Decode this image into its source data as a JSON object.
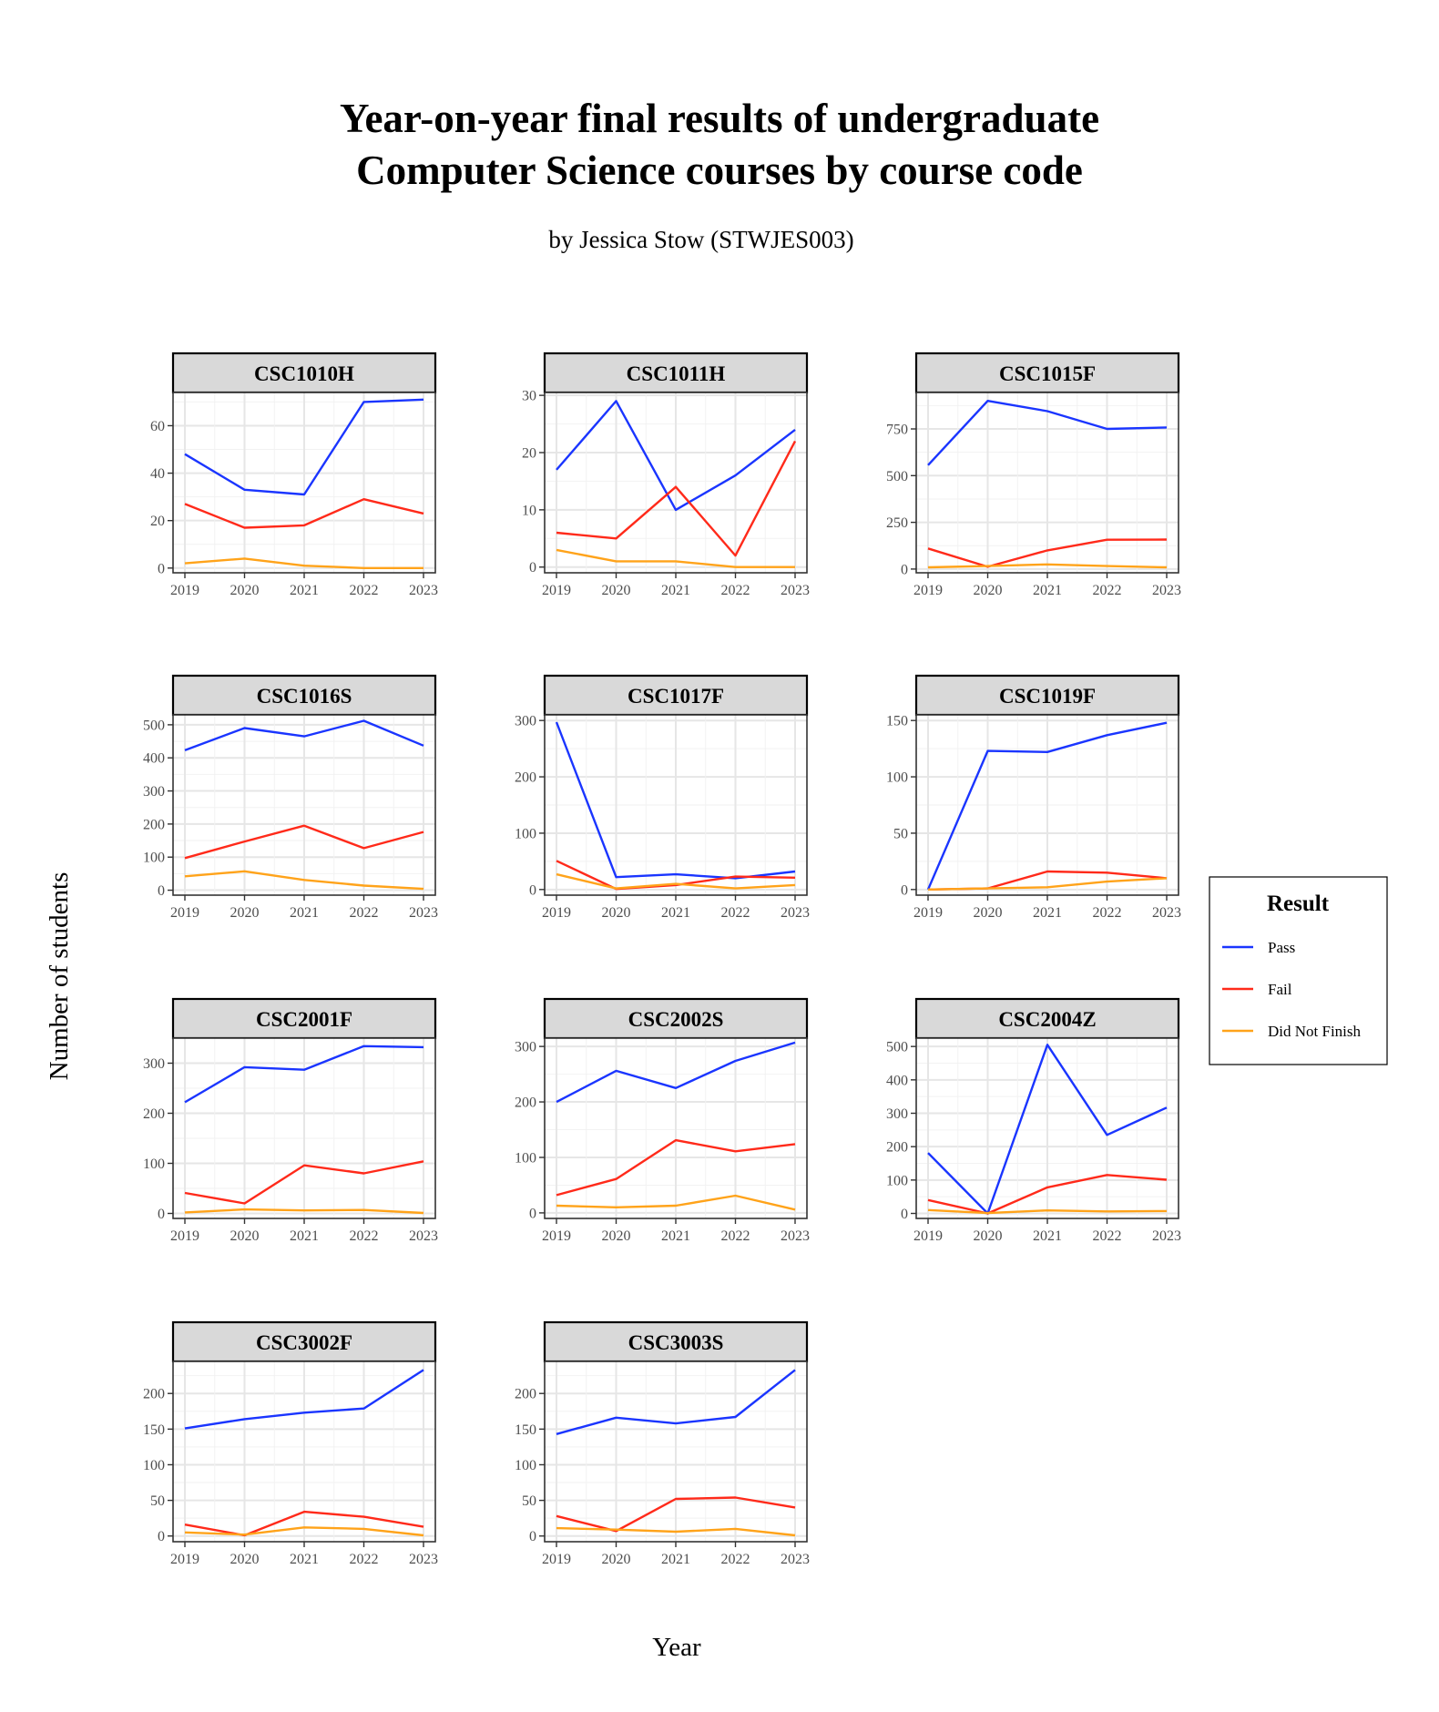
{
  "chart_data": {
    "type": "line",
    "title_lines": [
      "Year-on-year final results of undergraduate",
      "Computer Science courses by course code"
    ],
    "subtitle": "by Jessica Stow (STWJES003)",
    "xlabel": "Year",
    "ylabel": "Number of students",
    "x": [
      "2019",
      "2020",
      "2021",
      "2022",
      "2023"
    ],
    "legend": {
      "title": "Result",
      "position": "right",
      "entries": [
        {
          "name": "Pass",
          "color": "#1a35ff"
        },
        {
          "name": "Fail",
          "color": "#ff2a1a"
        },
        {
          "name": "Did Not Finish",
          "color": "#ffa31a"
        }
      ]
    },
    "grid": true,
    "panels": [
      {
        "title": "CSC1010H",
        "ylim": [
          -2,
          74
        ],
        "yticks": [
          0,
          20,
          40,
          60
        ],
        "series": [
          {
            "name": "Pass",
            "values": [
              48,
              33,
              31,
              70,
              71
            ]
          },
          {
            "name": "Fail",
            "values": [
              27,
              17,
              18,
              29,
              23
            ]
          },
          {
            "name": "Did Not Finish",
            "values": [
              2,
              4,
              1,
              0,
              0
            ]
          }
        ]
      },
      {
        "title": "CSC1011H",
        "ylim": [
          -1,
          30.5
        ],
        "yticks": [
          0,
          10,
          20,
          30
        ],
        "series": [
          {
            "name": "Pass",
            "values": [
              17,
              29,
              10,
              16,
              24
            ]
          },
          {
            "name": "Fail",
            "values": [
              6,
              5,
              14,
              2,
              22
            ]
          },
          {
            "name": "Did Not Finish",
            "values": [
              3,
              1,
              1,
              0,
              0
            ]
          }
        ]
      },
      {
        "title": "CSC1015F",
        "ylim": [
          -20,
          945
        ],
        "yticks": [
          0,
          250,
          500,
          750
        ],
        "series": [
          {
            "name": "Pass",
            "values": [
              556,
              900,
              845,
              750,
              758
            ]
          },
          {
            "name": "Fail",
            "values": [
              110,
              12,
              100,
              157,
              158
            ]
          },
          {
            "name": "Did Not Finish",
            "values": [
              9,
              16,
              25,
              16,
              9
            ]
          }
        ]
      },
      {
        "title": "CSC1016S",
        "ylim": [
          -15,
          530
        ],
        "yticks": [
          0,
          100,
          200,
          300,
          400,
          500
        ],
        "series": [
          {
            "name": "Pass",
            "values": [
              423,
              490,
              465,
              512,
              437
            ]
          },
          {
            "name": "Fail",
            "values": [
              97,
              147,
              195,
              127,
              176
            ]
          },
          {
            "name": "Did Not Finish",
            "values": [
              42,
              57,
              31,
              14,
              4
            ]
          }
        ]
      },
      {
        "title": "CSC1017F",
        "ylim": [
          -10,
          310
        ],
        "yticks": [
          0,
          100,
          200,
          300
        ],
        "series": [
          {
            "name": "Pass",
            "values": [
              297,
              22,
              27,
              20,
              32
            ]
          },
          {
            "name": "Fail",
            "values": [
              51,
              1,
              8,
              23,
              21
            ]
          },
          {
            "name": "Did Not Finish",
            "values": [
              27,
              2,
              10,
              2,
              8
            ]
          }
        ]
      },
      {
        "title": "CSC1019F",
        "ylim": [
          -5,
          155
        ],
        "yticks": [
          0,
          50,
          100,
          150
        ],
        "series": [
          {
            "name": "Pass",
            "values": [
              0,
              123,
              122,
              137,
              148
            ]
          },
          {
            "name": "Fail",
            "values": [
              0,
              1,
              16,
              15,
              10
            ]
          },
          {
            "name": "Did Not Finish",
            "values": [
              0,
              1,
              2,
              7,
              10
            ]
          }
        ]
      },
      {
        "title": "CSC2001F",
        "ylim": [
          -10,
          350
        ],
        "yticks": [
          0,
          100,
          200,
          300
        ],
        "series": [
          {
            "name": "Pass",
            "values": [
              222,
              292,
              287,
              334,
              332
            ]
          },
          {
            "name": "Fail",
            "values": [
              41,
              20,
              96,
              80,
              104
            ]
          },
          {
            "name": "Did Not Finish",
            "values": [
              2,
              8,
              6,
              7,
              1
            ]
          }
        ]
      },
      {
        "title": "CSC2002S",
        "ylim": [
          -10,
          315
        ],
        "yticks": [
          0,
          100,
          200,
          300
        ],
        "series": [
          {
            "name": "Pass",
            "values": [
              200,
              256,
              225,
              274,
              307
            ]
          },
          {
            "name": "Fail",
            "values": [
              32,
              61,
              131,
              111,
              124
            ]
          },
          {
            "name": "Did Not Finish",
            "values": [
              13,
              10,
              13,
              31,
              6
            ]
          }
        ]
      },
      {
        "title": "CSC2004Z",
        "ylim": [
          -15,
          525
        ],
        "yticks": [
          0,
          100,
          200,
          300,
          400,
          500
        ],
        "series": [
          {
            "name": "Pass",
            "values": [
              181,
              0,
              505,
              235,
              317
            ]
          },
          {
            "name": "Fail",
            "values": [
              40,
              0,
              78,
              115,
              101
            ]
          },
          {
            "name": "Did Not Finish",
            "values": [
              10,
              1,
              9,
              6,
              7
            ]
          }
        ]
      },
      {
        "title": "CSC3002F",
        "ylim": [
          -8,
          245
        ],
        "yticks": [
          0,
          50,
          100,
          150,
          200
        ],
        "series": [
          {
            "name": "Pass",
            "values": [
              151,
              164,
              173,
              179,
              233
            ]
          },
          {
            "name": "Fail",
            "values": [
              16,
              1,
              34,
              27,
              13
            ]
          },
          {
            "name": "Did Not Finish",
            "values": [
              5,
              2,
              12,
              10,
              1
            ]
          }
        ]
      },
      {
        "title": "CSC3003S",
        "ylim": [
          -8,
          245
        ],
        "yticks": [
          0,
          50,
          100,
          150,
          200
        ],
        "series": [
          {
            "name": "Pass",
            "values": [
              143,
              166,
              158,
              167,
              233
            ]
          },
          {
            "name": "Fail",
            "values": [
              28,
              7,
              52,
              54,
              40
            ]
          },
          {
            "name": "Did Not Finish",
            "values": [
              11,
              9,
              6,
              10,
              1
            ]
          }
        ]
      }
    ]
  }
}
